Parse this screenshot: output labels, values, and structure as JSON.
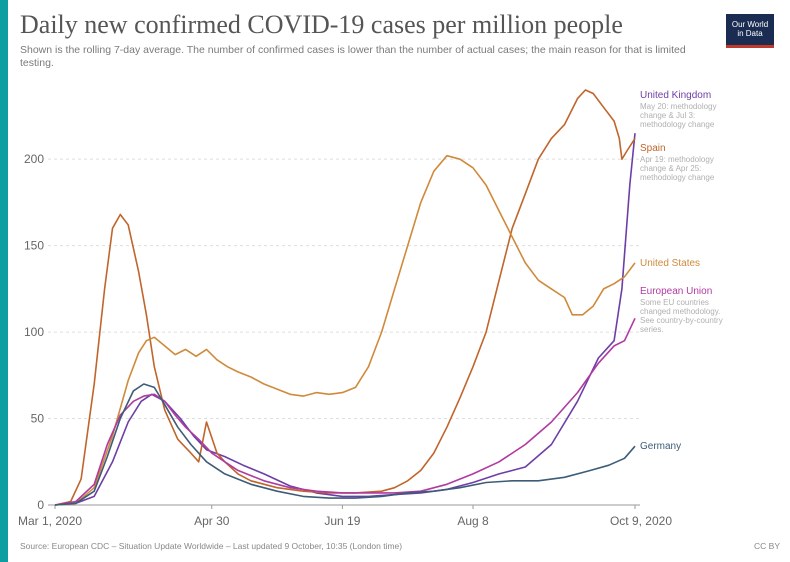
{
  "title": "Daily new confirmed COVID-19 cases per million people",
  "subtitle": "Shown is the rolling 7-day average. The number of confirmed cases is lower than the number of actual cases; the main reason for that is limited testing.",
  "logo": {
    "line1": "Our World",
    "line2": "in Data"
  },
  "source": "Source: European CDC – Situation Update Worldwide – Last updated 9 October, 10:35 (London time)",
  "license": "CC BY",
  "chart_data": {
    "type": "line",
    "xlabel": "",
    "ylabel": "",
    "ylim": [
      0,
      240
    ],
    "yticks": [
      0,
      50,
      100,
      150,
      200
    ],
    "xlim": [
      0,
      222
    ],
    "xticks": [
      {
        "day": 0,
        "label": "Mar 1, 2020"
      },
      {
        "day": 60,
        "label": "Apr 30"
      },
      {
        "day": 110,
        "label": "Jun 19"
      },
      {
        "day": 160,
        "label": "Aug 8"
      },
      {
        "day": 222,
        "label": "Oct 9, 2020"
      }
    ],
    "grid": true,
    "legend": "right-inline",
    "series": [
      {
        "name": "United Kingdom",
        "note": "May 20: methodology change & Jul 3: methodology change",
        "color": "#6d3fa6",
        "points": [
          [
            0,
            0
          ],
          [
            8,
            1
          ],
          [
            15,
            5
          ],
          [
            22,
            25
          ],
          [
            28,
            48
          ],
          [
            33,
            60
          ],
          [
            37,
            64
          ],
          [
            42,
            60
          ],
          [
            48,
            50
          ],
          [
            53,
            40
          ],
          [
            58,
            32
          ],
          [
            65,
            28
          ],
          [
            72,
            23
          ],
          [
            80,
            18
          ],
          [
            90,
            11
          ],
          [
            100,
            7
          ],
          [
            110,
            5
          ],
          [
            120,
            5
          ],
          [
            130,
            6
          ],
          [
            140,
            7
          ],
          [
            150,
            9
          ],
          [
            160,
            13
          ],
          [
            170,
            18
          ],
          [
            180,
            22
          ],
          [
            190,
            35
          ],
          [
            200,
            60
          ],
          [
            208,
            85
          ],
          [
            214,
            95
          ],
          [
            217,
            125
          ],
          [
            220,
            185
          ],
          [
            222,
            215
          ]
        ]
      },
      {
        "name": "Spain",
        "note": "Apr 19: methodology change & Apr 25: methodology change",
        "color": "#c0652b",
        "points": [
          [
            0,
            0
          ],
          [
            6,
            2
          ],
          [
            10,
            15
          ],
          [
            15,
            70
          ],
          [
            19,
            125
          ],
          [
            22,
            160
          ],
          [
            25,
            168
          ],
          [
            28,
            162
          ],
          [
            32,
            135
          ],
          [
            35,
            110
          ],
          [
            38,
            80
          ],
          [
            42,
            55
          ],
          [
            47,
            38
          ],
          [
            52,
            30
          ],
          [
            55,
            25
          ],
          [
            58,
            48
          ],
          [
            62,
            30
          ],
          [
            65,
            25
          ],
          [
            70,
            18
          ],
          [
            75,
            14
          ],
          [
            85,
            10
          ],
          [
            95,
            8
          ],
          [
            105,
            7
          ],
          [
            115,
            7
          ],
          [
            125,
            8
          ],
          [
            130,
            10
          ],
          [
            135,
            14
          ],
          [
            140,
            20
          ],
          [
            145,
            30
          ],
          [
            150,
            45
          ],
          [
            155,
            62
          ],
          [
            160,
            80
          ],
          [
            165,
            100
          ],
          [
            170,
            130
          ],
          [
            175,
            160
          ],
          [
            180,
            180
          ],
          [
            185,
            200
          ],
          [
            190,
            212
          ],
          [
            195,
            220
          ],
          [
            200,
            235
          ],
          [
            203,
            240
          ],
          [
            206,
            238
          ],
          [
            210,
            230
          ],
          [
            214,
            222
          ],
          [
            216,
            212
          ],
          [
            217,
            200
          ],
          [
            219,
            205
          ],
          [
            222,
            212
          ]
        ]
      },
      {
        "name": "United States",
        "note": "",
        "color": "#cf8a3b",
        "points": [
          [
            0,
            0
          ],
          [
            8,
            1
          ],
          [
            15,
            10
          ],
          [
            22,
            40
          ],
          [
            28,
            72
          ],
          [
            32,
            88
          ],
          [
            35,
            95
          ],
          [
            38,
            97
          ],
          [
            42,
            92
          ],
          [
            46,
            87
          ],
          [
            50,
            90
          ],
          [
            54,
            86
          ],
          [
            58,
            90
          ],
          [
            62,
            84
          ],
          [
            66,
            80
          ],
          [
            70,
            77
          ],
          [
            75,
            74
          ],
          [
            80,
            70
          ],
          [
            85,
            67
          ],
          [
            90,
            64
          ],
          [
            95,
            63
          ],
          [
            100,
            65
          ],
          [
            105,
            64
          ],
          [
            110,
            65
          ],
          [
            115,
            68
          ],
          [
            120,
            80
          ],
          [
            125,
            100
          ],
          [
            130,
            125
          ],
          [
            135,
            150
          ],
          [
            140,
            175
          ],
          [
            145,
            193
          ],
          [
            150,
            202
          ],
          [
            155,
            200
          ],
          [
            160,
            195
          ],
          [
            165,
            185
          ],
          [
            170,
            170
          ],
          [
            175,
            155
          ],
          [
            180,
            140
          ],
          [
            185,
            130
          ],
          [
            190,
            125
          ],
          [
            195,
            120
          ],
          [
            198,
            110
          ],
          [
            202,
            110
          ],
          [
            206,
            115
          ],
          [
            210,
            125
          ],
          [
            214,
            128
          ],
          [
            218,
            132
          ],
          [
            222,
            140
          ]
        ]
      },
      {
        "name": "European Union",
        "note": "Some EU countries changed methodology. See country-by-country series.",
        "color": "#b03aa0",
        "points": [
          [
            0,
            0
          ],
          [
            8,
            2
          ],
          [
            15,
            12
          ],
          [
            20,
            35
          ],
          [
            25,
            52
          ],
          [
            30,
            60
          ],
          [
            34,
            63
          ],
          [
            38,
            64
          ],
          [
            42,
            60
          ],
          [
            46,
            52
          ],
          [
            50,
            45
          ],
          [
            55,
            38
          ],
          [
            60,
            30
          ],
          [
            65,
            25
          ],
          [
            70,
            20
          ],
          [
            80,
            14
          ],
          [
            90,
            10
          ],
          [
            100,
            8
          ],
          [
            110,
            7
          ],
          [
            120,
            7
          ],
          [
            130,
            7
          ],
          [
            140,
            8
          ],
          [
            150,
            12
          ],
          [
            160,
            18
          ],
          [
            170,
            25
          ],
          [
            180,
            35
          ],
          [
            190,
            48
          ],
          [
            200,
            65
          ],
          [
            208,
            82
          ],
          [
            214,
            92
          ],
          [
            218,
            95
          ],
          [
            222,
            108
          ]
        ]
      },
      {
        "name": "Germany",
        "note": "",
        "color": "#3d5c78",
        "points": [
          [
            0,
            0
          ],
          [
            8,
            1
          ],
          [
            15,
            8
          ],
          [
            20,
            28
          ],
          [
            25,
            50
          ],
          [
            30,
            66
          ],
          [
            34,
            70
          ],
          [
            38,
            68
          ],
          [
            42,
            58
          ],
          [
            47,
            45
          ],
          [
            52,
            35
          ],
          [
            58,
            25
          ],
          [
            65,
            18
          ],
          [
            75,
            12
          ],
          [
            85,
            8
          ],
          [
            95,
            5
          ],
          [
            105,
            4
          ],
          [
            115,
            4
          ],
          [
            125,
            5
          ],
          [
            135,
            7
          ],
          [
            145,
            8
          ],
          [
            155,
            10
          ],
          [
            165,
            13
          ],
          [
            175,
            14
          ],
          [
            185,
            14
          ],
          [
            195,
            16
          ],
          [
            205,
            20
          ],
          [
            212,
            23
          ],
          [
            218,
            27
          ],
          [
            222,
            34
          ]
        ]
      }
    ]
  }
}
